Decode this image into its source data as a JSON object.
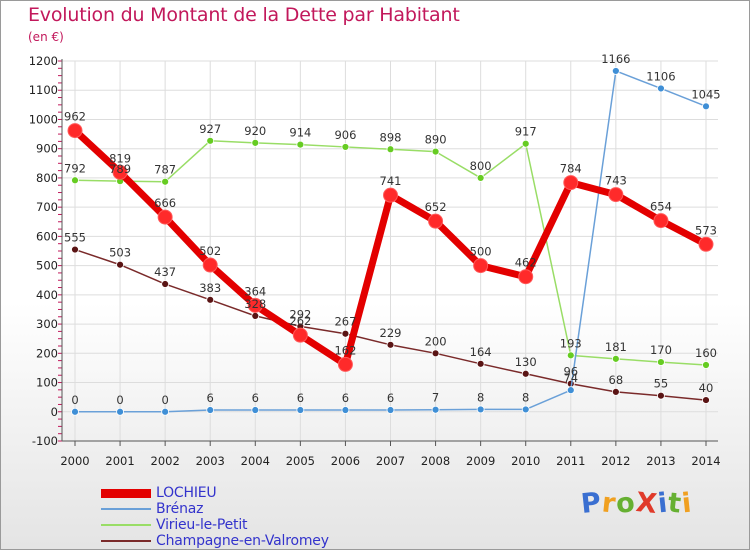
{
  "title": "Evolution du Montant de la Dette par Habitant",
  "unit": "(en €)",
  "logo": {
    "text": "ProXiti",
    "colors": [
      "#3a6fd1",
      "#f0a020",
      "#66b032",
      "#e03a2a",
      "#3a6fd1",
      "#66b032",
      "#f0a020"
    ]
  },
  "colors": {
    "title": "#c2185b",
    "axis": "#555555",
    "tick_marks": "#c2185b",
    "grid": "#dddddd"
  },
  "chart_data": {
    "type": "line",
    "x": [
      2000,
      2001,
      2002,
      2003,
      2004,
      2005,
      2006,
      2007,
      2008,
      2009,
      2010,
      2011,
      2012,
      2013,
      2014
    ],
    "ylim": [
      -100,
      1200
    ],
    "yticks": [
      -100,
      0,
      100,
      200,
      300,
      400,
      500,
      600,
      700,
      800,
      900,
      1000,
      1100,
      1200
    ],
    "grid": true,
    "legend_position": "bottom-left",
    "series": [
      {
        "name": "LOCHIEU",
        "color": "#e30000",
        "marker_fill": "#ff2a2a",
        "width": 7,
        "radius": 7,
        "values": [
          962,
          819,
          666,
          502,
          364,
          262,
          162,
          741,
          652,
          500,
          462,
          784,
          743,
          654,
          573
        ],
        "labels": [
          "962",
          "819",
          "666",
          "502",
          "364",
          "262",
          "162",
          "741",
          "652",
          "500",
          "462",
          "784",
          "743",
          "654",
          "573"
        ]
      },
      {
        "name": "Brénaz",
        "color": "#6aa0d8",
        "marker_fill": "#3f8fd6",
        "width": 1.5,
        "radius": 3.5,
        "values": [
          0,
          0,
          0,
          6,
          6,
          6,
          6,
          6,
          7,
          8,
          8,
          74,
          1166,
          1106,
          1045
        ],
        "labels": [
          "0",
          "0",
          "0",
          "6",
          "6",
          "6",
          "6",
          "6",
          "7",
          "8",
          "8",
          "74",
          "1166",
          "1106",
          "1045"
        ]
      },
      {
        "name": "Virieu-le-Petit",
        "color": "#99dd66",
        "marker_fill": "#66cc22",
        "width": 1.5,
        "radius": 3.5,
        "values": [
          792,
          789,
          787,
          927,
          920,
          914,
          906,
          898,
          890,
          800,
          917,
          193,
          181,
          170,
          160
        ],
        "labels": [
          "792",
          "789",
          "787",
          "927",
          "920",
          "914",
          "906",
          "898",
          "890",
          "800",
          "917",
          "193",
          "181",
          "170",
          "160"
        ]
      },
      {
        "name": "Champagne-en-Valromey",
        "color": "#7a2a2a",
        "marker_fill": "#5a1414",
        "width": 1.5,
        "radius": 3.5,
        "values": [
          555,
          503,
          437,
          383,
          328,
          292,
          267,
          229,
          200,
          164,
          130,
          96,
          68,
          55,
          40
        ],
        "labels": [
          "555",
          "503",
          "437",
          "383",
          "328",
          "292",
          "267",
          "229",
          "200",
          "164",
          "130",
          "96",
          "68",
          "55",
          "40"
        ]
      }
    ]
  }
}
